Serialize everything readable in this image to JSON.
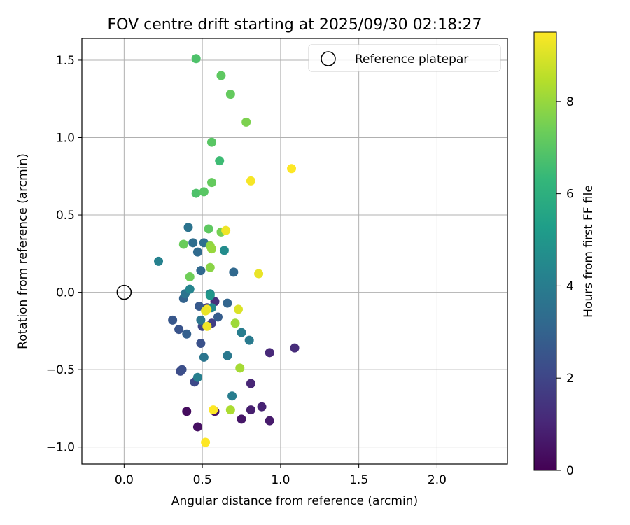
{
  "chart_data": {
    "type": "scatter",
    "title": "FOV centre drift starting at 2025/09/30 02:18:27",
    "xlabel": "Angular distance from reference (arcmin)",
    "ylabel": "Rotation from reference (arcmin)",
    "xlim": [
      -0.27,
      2.45
    ],
    "ylim": [
      -1.11,
      1.64
    ],
    "xticks": [
      0.0,
      0.5,
      1.0,
      1.5,
      2.0
    ],
    "xtick_labels": [
      "0.0",
      "0.5",
      "1.0",
      "1.5",
      "2.0"
    ],
    "yticks": [
      1.5,
      1.0,
      0.5,
      0.0,
      -0.5,
      -1.0
    ],
    "ytick_labels": [
      "1.5",
      "1.0",
      "0.5",
      "0.0",
      "−0.5",
      "−1.0"
    ],
    "grid": true,
    "legend": {
      "position": "top-right",
      "entries": [
        {
          "label": "Reference platepar",
          "marker": "open-circle"
        }
      ]
    },
    "reference_point": {
      "x": 0.0,
      "y": 0.0
    },
    "colorbar": {
      "label": "Hours from first FF file",
      "colormap": "viridis",
      "range": [
        0,
        9.5
      ],
      "ticks": [
        0,
        2,
        4,
        6,
        8
      ],
      "tick_labels": [
        "0",
        "2",
        "4",
        "6",
        "8"
      ],
      "stops": [
        "#440154",
        "#482878",
        "#3e4989",
        "#31688e",
        "#26828e",
        "#1f9e89",
        "#35b779",
        "#6ece58",
        "#b5de2b",
        "#fde725"
      ]
    },
    "points": [
      {
        "x": 0.4,
        "y": -0.77,
        "hours": 0.3
      },
      {
        "x": 0.47,
        "y": -0.87,
        "hours": 0.4
      },
      {
        "x": 0.58,
        "y": -0.77,
        "hours": 0.5
      },
      {
        "x": 0.75,
        "y": -0.82,
        "hours": 0.6
      },
      {
        "x": 0.93,
        "y": -0.83,
        "hours": 0.7
      },
      {
        "x": 0.81,
        "y": -0.76,
        "hours": 0.8
      },
      {
        "x": 0.88,
        "y": -0.74,
        "hours": 0.9
      },
      {
        "x": 0.81,
        "y": -0.59,
        "hours": 1.0
      },
      {
        "x": 0.93,
        "y": -0.39,
        "hours": 1.1
      },
      {
        "x": 1.09,
        "y": -0.36,
        "hours": 1.2
      },
      {
        "x": 0.58,
        "y": -0.06,
        "hours": 1.3
      },
      {
        "x": 0.53,
        "y": -0.1,
        "hours": 1.5
      },
      {
        "x": 0.56,
        "y": -0.2,
        "hours": 1.8
      },
      {
        "x": 0.5,
        "y": -0.22,
        "hours": 2.0
      },
      {
        "x": 0.45,
        "y": -0.58,
        "hours": 2.1
      },
      {
        "x": 0.36,
        "y": -0.51,
        "hours": 2.2
      },
      {
        "x": 0.37,
        "y": -0.5,
        "hours": 2.3
      },
      {
        "x": 0.49,
        "y": -0.33,
        "hours": 2.4
      },
      {
        "x": 0.35,
        "y": -0.24,
        "hours": 2.5
      },
      {
        "x": 0.31,
        "y": -0.18,
        "hours": 2.6
      },
      {
        "x": 0.48,
        "y": -0.09,
        "hours": 2.7
      },
      {
        "x": 0.6,
        "y": -0.16,
        "hours": 2.8
      },
      {
        "x": 0.4,
        "y": -0.27,
        "hours": 2.9
      },
      {
        "x": 0.38,
        "y": -0.04,
        "hours": 3.0
      },
      {
        "x": 0.66,
        "y": -0.07,
        "hours": 3.1
      },
      {
        "x": 0.7,
        "y": 0.13,
        "hours": 3.2
      },
      {
        "x": 0.49,
        "y": 0.14,
        "hours": 3.2
      },
      {
        "x": 0.47,
        "y": 0.26,
        "hours": 3.3
      },
      {
        "x": 0.44,
        "y": 0.32,
        "hours": 3.4
      },
      {
        "x": 0.51,
        "y": 0.32,
        "hours": 3.5
      },
      {
        "x": 0.41,
        "y": 0.42,
        "hours": 3.6
      },
      {
        "x": 0.39,
        "y": -0.01,
        "hours": 3.6
      },
      {
        "x": 0.49,
        "y": -0.18,
        "hours": 3.7
      },
      {
        "x": 0.51,
        "y": -0.42,
        "hours": 3.7
      },
      {
        "x": 0.66,
        "y": -0.41,
        "hours": 3.8
      },
      {
        "x": 0.8,
        "y": -0.31,
        "hours": 3.9
      },
      {
        "x": 0.75,
        "y": -0.26,
        "hours": 4.0
      },
      {
        "x": 0.69,
        "y": -0.67,
        "hours": 4.0
      },
      {
        "x": 0.47,
        "y": -0.55,
        "hours": 4.1
      },
      {
        "x": 0.22,
        "y": 0.2,
        "hours": 4.2
      },
      {
        "x": 0.42,
        "y": 0.02,
        "hours": 4.3
      },
      {
        "x": 0.55,
        "y": -0.01,
        "hours": 4.4
      },
      {
        "x": 0.56,
        "y": -0.1,
        "hours": 4.5
      },
      {
        "x": 0.64,
        "y": 0.27,
        "hours": 4.6
      },
      {
        "x": 0.55,
        "y": -0.02,
        "hours": 5.0
      },
      {
        "x": 0.46,
        "y": 1.51,
        "hours": 6.8
      },
      {
        "x": 0.61,
        "y": 0.85,
        "hours": 6.5
      },
      {
        "x": 0.62,
        "y": 1.4,
        "hours": 7.1
      },
      {
        "x": 0.68,
        "y": 1.28,
        "hours": 7.2
      },
      {
        "x": 0.56,
        "y": 0.97,
        "hours": 7.0
      },
      {
        "x": 0.78,
        "y": 1.1,
        "hours": 7.6
      },
      {
        "x": 0.46,
        "y": 0.64,
        "hours": 6.8
      },
      {
        "x": 0.51,
        "y": 0.65,
        "hours": 7.0
      },
      {
        "x": 0.56,
        "y": 0.71,
        "hours": 7.2
      },
      {
        "x": 0.54,
        "y": 0.41,
        "hours": 7.1
      },
      {
        "x": 0.62,
        "y": 0.39,
        "hours": 7.5
      },
      {
        "x": 0.38,
        "y": 0.31,
        "hours": 7.3
      },
      {
        "x": 0.42,
        "y": 0.1,
        "hours": 7.4
      },
      {
        "x": 0.55,
        "y": 0.16,
        "hours": 7.8
      },
      {
        "x": 0.55,
        "y": 0.3,
        "hours": 7.9
      },
      {
        "x": 0.56,
        "y": 0.28,
        "hours": 8.0
      },
      {
        "x": 0.71,
        "y": -0.2,
        "hours": 8.1
      },
      {
        "x": 0.74,
        "y": -0.49,
        "hours": 8.2
      },
      {
        "x": 0.68,
        "y": -0.76,
        "hours": 8.3
      },
      {
        "x": 0.86,
        "y": 0.12,
        "hours": 9.2
      },
      {
        "x": 0.73,
        "y": -0.11,
        "hours": 9.0
      },
      {
        "x": 0.65,
        "y": 0.4,
        "hours": 9.3
      },
      {
        "x": 0.81,
        "y": 0.72,
        "hours": 9.4
      },
      {
        "x": 1.07,
        "y": 0.8,
        "hours": 9.5
      },
      {
        "x": 0.53,
        "y": -0.11,
        "hours": 9.4
      },
      {
        "x": 0.53,
        "y": -0.22,
        "hours": 9.3
      },
      {
        "x": 0.57,
        "y": -0.76,
        "hours": 9.5
      },
      {
        "x": 0.52,
        "y": -0.97,
        "hours": 9.5
      },
      {
        "x": 0.52,
        "y": -0.12,
        "hours": 9.2
      }
    ]
  }
}
